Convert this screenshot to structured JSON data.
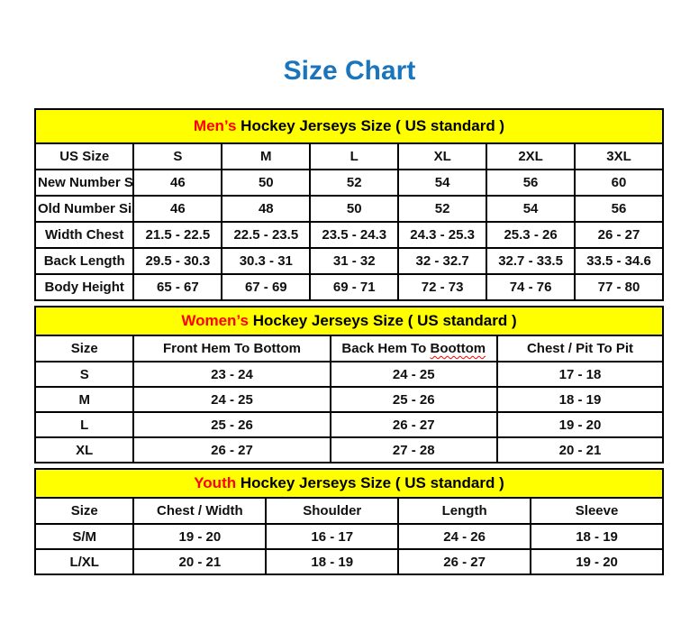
{
  "page": {
    "title": "Size Chart",
    "title_color": "#1b75bc"
  },
  "colors": {
    "section_band_bg": "#ffff00",
    "section_highlight": "#ff0000",
    "border": "#000000",
    "title_blue": "#1b75bc"
  },
  "tables": [
    {
      "id": "mens",
      "band": {
        "highlight": "Men’s",
        "rest": " Hockey Jerseys Size ( US standard )"
      },
      "columns": [
        "US Size",
        "S",
        "M",
        "L",
        "XL",
        "2XL",
        "3XL"
      ],
      "rows": [
        {
          "label": "New Number Size",
          "values": [
            "46",
            "50",
            "52",
            "54",
            "56",
            "60"
          ]
        },
        {
          "label": "Old Number Size",
          "values": [
            "46",
            "48",
            "50",
            "52",
            "54",
            "56"
          ]
        },
        {
          "label": "Width Chest",
          "values": [
            "21.5 - 22.5",
            "22.5 - 23.5",
            "23.5 - 24.3",
            "24.3 - 25.3",
            "25.3 - 26",
            "26 - 27"
          ]
        },
        {
          "label": "Back Length",
          "values": [
            "29.5 - 30.3",
            "30.3 - 31",
            "31 - 32",
            "32 - 32.7",
            "32.7 - 33.5",
            "33.5 - 34.6"
          ]
        },
        {
          "label": "Body Height",
          "values": [
            "65 - 67",
            "67 - 69",
            "69 - 71",
            "72 - 73",
            "74 - 76",
            "77 - 80"
          ]
        }
      ]
    },
    {
      "id": "womens",
      "band": {
        "highlight": "Women’s",
        "rest": " Hockey Jerseys Size ( US standard )"
      },
      "columns": [
        "Size",
        "Front Hem To Bottom",
        "Back Hem To Boottom",
        "Chest / Pit To Pit"
      ],
      "squiggle_word": "Boottom",
      "rows": [
        {
          "label": "S",
          "values": [
            "23 - 24",
            "24 - 25",
            "17 - 18"
          ]
        },
        {
          "label": "M",
          "values": [
            "24 - 25",
            "25 - 26",
            "18 - 19"
          ]
        },
        {
          "label": "L",
          "values": [
            "25 - 26",
            "26 - 27",
            "19 - 20"
          ]
        },
        {
          "label": "XL",
          "values": [
            "26 - 27",
            "27 - 28",
            "20 - 21"
          ]
        }
      ]
    },
    {
      "id": "youth",
      "band": {
        "highlight": "Youth",
        "rest": " Hockey Jerseys Size ( US standard )"
      },
      "columns": [
        "Size",
        "Chest / Width",
        "Shoulder",
        "Length",
        "Sleeve"
      ],
      "rows": [
        {
          "label": "S/M",
          "values": [
            "19 - 20",
            "16 - 17",
            "24 - 26",
            "18 - 19"
          ]
        },
        {
          "label": "L/XL",
          "values": [
            "20 - 21",
            "18 - 19",
            "26 - 27",
            "19 - 20"
          ]
        }
      ]
    }
  ]
}
